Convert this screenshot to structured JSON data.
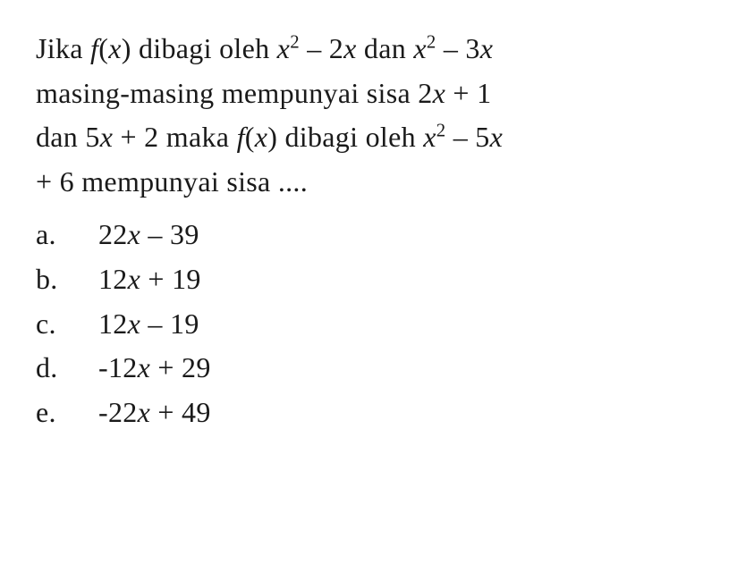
{
  "question": {
    "line1_part1": "Jika ",
    "line1_fx": "f",
    "line1_part2": "(",
    "line1_x1": "x",
    "line1_part3": ") dibagi oleh ",
    "line1_x2": "x",
    "line1_exp1": "2",
    "line1_part4": " – 2",
    "line1_x3": "x",
    "line1_part5": " dan ",
    "line1_x4": "x",
    "line1_exp2": "2",
    "line1_part6": " – 3",
    "line1_x5": "x",
    "line2_part1": "masing-masing mempunyai sisa 2",
    "line2_x1": "x",
    "line2_part2": " + 1",
    "line3_part1": "dan 5",
    "line3_x1": "x",
    "line3_part2": " + 2 maka ",
    "line3_fx": "f",
    "line3_part3": "(",
    "line3_x2": "x",
    "line3_part4": ") dibagi oleh ",
    "line3_x3": "x",
    "line3_exp1": "2",
    "line3_part5": " – 5",
    "line3_x4": "x",
    "line4_part1": "+ 6 mempunyai sisa ...."
  },
  "options": {
    "a": {
      "letter": "a.",
      "prefix": "22",
      "x": "x",
      "suffix": " – 39"
    },
    "b": {
      "letter": "b.",
      "prefix": "12",
      "x": "x",
      "suffix": " + 19"
    },
    "c": {
      "letter": "c.",
      "prefix": "12",
      "x": "x",
      "suffix": " – 19"
    },
    "d": {
      "letter": "d.",
      "prefix": "-12",
      "x": "x",
      "suffix": " + 29"
    },
    "e": {
      "letter": "e.",
      "prefix": "-22",
      "x": "x",
      "suffix": " + 49"
    }
  },
  "style": {
    "font_size": 32,
    "background_color": "#ffffff",
    "text_color": "#1a1a1a",
    "line_height": 1.55
  }
}
